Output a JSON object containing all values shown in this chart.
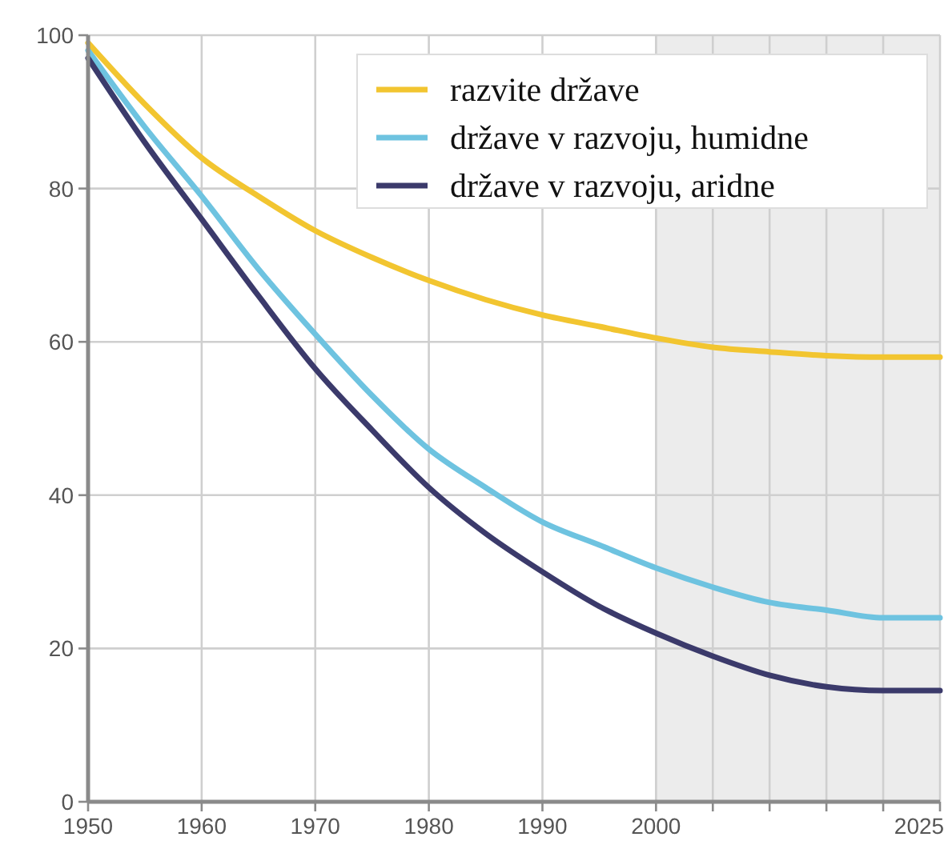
{
  "chart_data": {
    "type": "line",
    "x": [
      1950,
      1955,
      1960,
      1965,
      1970,
      1975,
      1980,
      1985,
      1990,
      1995,
      2000,
      2005,
      2010,
      2015,
      2020,
      2025
    ],
    "series": [
      {
        "name": "razvite države",
        "color": "#f2c530",
        "values": [
          99,
          91,
          84,
          79,
          74.5,
          71,
          68,
          65.5,
          63.5,
          62,
          60.5,
          59.3,
          58.7,
          58.2,
          58,
          58
        ]
      },
      {
        "name": "države v razvoju, humidne",
        "color": "#6ec3e0",
        "values": [
          98,
          88,
          79,
          69.5,
          61,
          53,
          46,
          41,
          36.5,
          33.5,
          30.5,
          28,
          26,
          25,
          24,
          24
        ]
      },
      {
        "name": "države v razvoju, aridne",
        "color": "#3b3a6b",
        "values": [
          97,
          86,
          76,
          66,
          56.5,
          48.5,
          41,
          35,
          30,
          25.5,
          22,
          19,
          16.5,
          15,
          14.5,
          14.5
        ]
      }
    ],
    "xlim": [
      1950,
      2025
    ],
    "xticks": [
      1950,
      1960,
      1970,
      1980,
      1990,
      2000,
      {
        "value": 2005,
        "label": null
      },
      {
        "value": 2010,
        "label": null
      },
      {
        "value": 2015,
        "label": null
      },
      {
        "value": 2020,
        "label": null
      },
      2025
    ],
    "ylim": [
      0,
      100
    ],
    "yticks": [
      0,
      20,
      40,
      60,
      80,
      100
    ],
    "bands": [
      {
        "axis": "x",
        "from": 2000,
        "to": 2025,
        "color": "#ececec"
      }
    ],
    "grid": true,
    "legend": "top right",
    "line_style": "solid",
    "marker": "none"
  }
}
